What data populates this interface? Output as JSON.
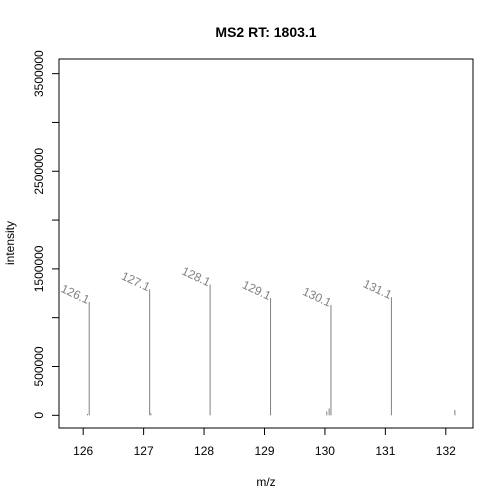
{
  "chart_data": {
    "type": "bar",
    "title": "MS2 RT: 1803.1",
    "xlabel": "m/z",
    "ylabel": "intensity",
    "xlim": [
      125.6,
      132.45
    ],
    "ylim": [
      -130000,
      3650000
    ],
    "xticks": [
      126,
      127,
      128,
      129,
      130,
      131,
      132
    ],
    "yticks": [
      0,
      500000,
      1500000,
      2500000,
      3500000
    ],
    "yticks_minor": [
      1000000,
      2000000,
      3000000
    ],
    "peak_color": "#808080",
    "peaks": [
      {
        "mz": 126.1,
        "intensity": 1160000
      },
      {
        "mz": 127.1,
        "intensity": 1290000
      },
      {
        "mz": 128.1,
        "intensity": 1340000
      },
      {
        "mz": 129.1,
        "intensity": 1200000
      },
      {
        "mz": 130.1,
        "intensity": 1130000
      },
      {
        "mz": 131.1,
        "intensity": 1210000
      },
      {
        "mz": 126.07,
        "intensity": 15000
      },
      {
        "mz": 127.12,
        "intensity": 20000
      },
      {
        "mz": 130.03,
        "intensity": 40000
      },
      {
        "mz": 130.07,
        "intensity": 70000
      },
      {
        "mz": 132.15,
        "intensity": 55000
      }
    ],
    "annotations": [
      {
        "text": "126.1",
        "mz": 126.1,
        "intensity": 1160000
      },
      {
        "text": "127.1",
        "mz": 127.1,
        "intensity": 1290000
      },
      {
        "text": "128.1",
        "mz": 128.1,
        "intensity": 1340000
      },
      {
        "text": "129.1",
        "mz": 129.1,
        "intensity": 1200000
      },
      {
        "text": "130.1",
        "mz": 130.1,
        "intensity": 1130000
      },
      {
        "text": "131.1",
        "mz": 131.1,
        "intensity": 1210000
      }
    ]
  }
}
